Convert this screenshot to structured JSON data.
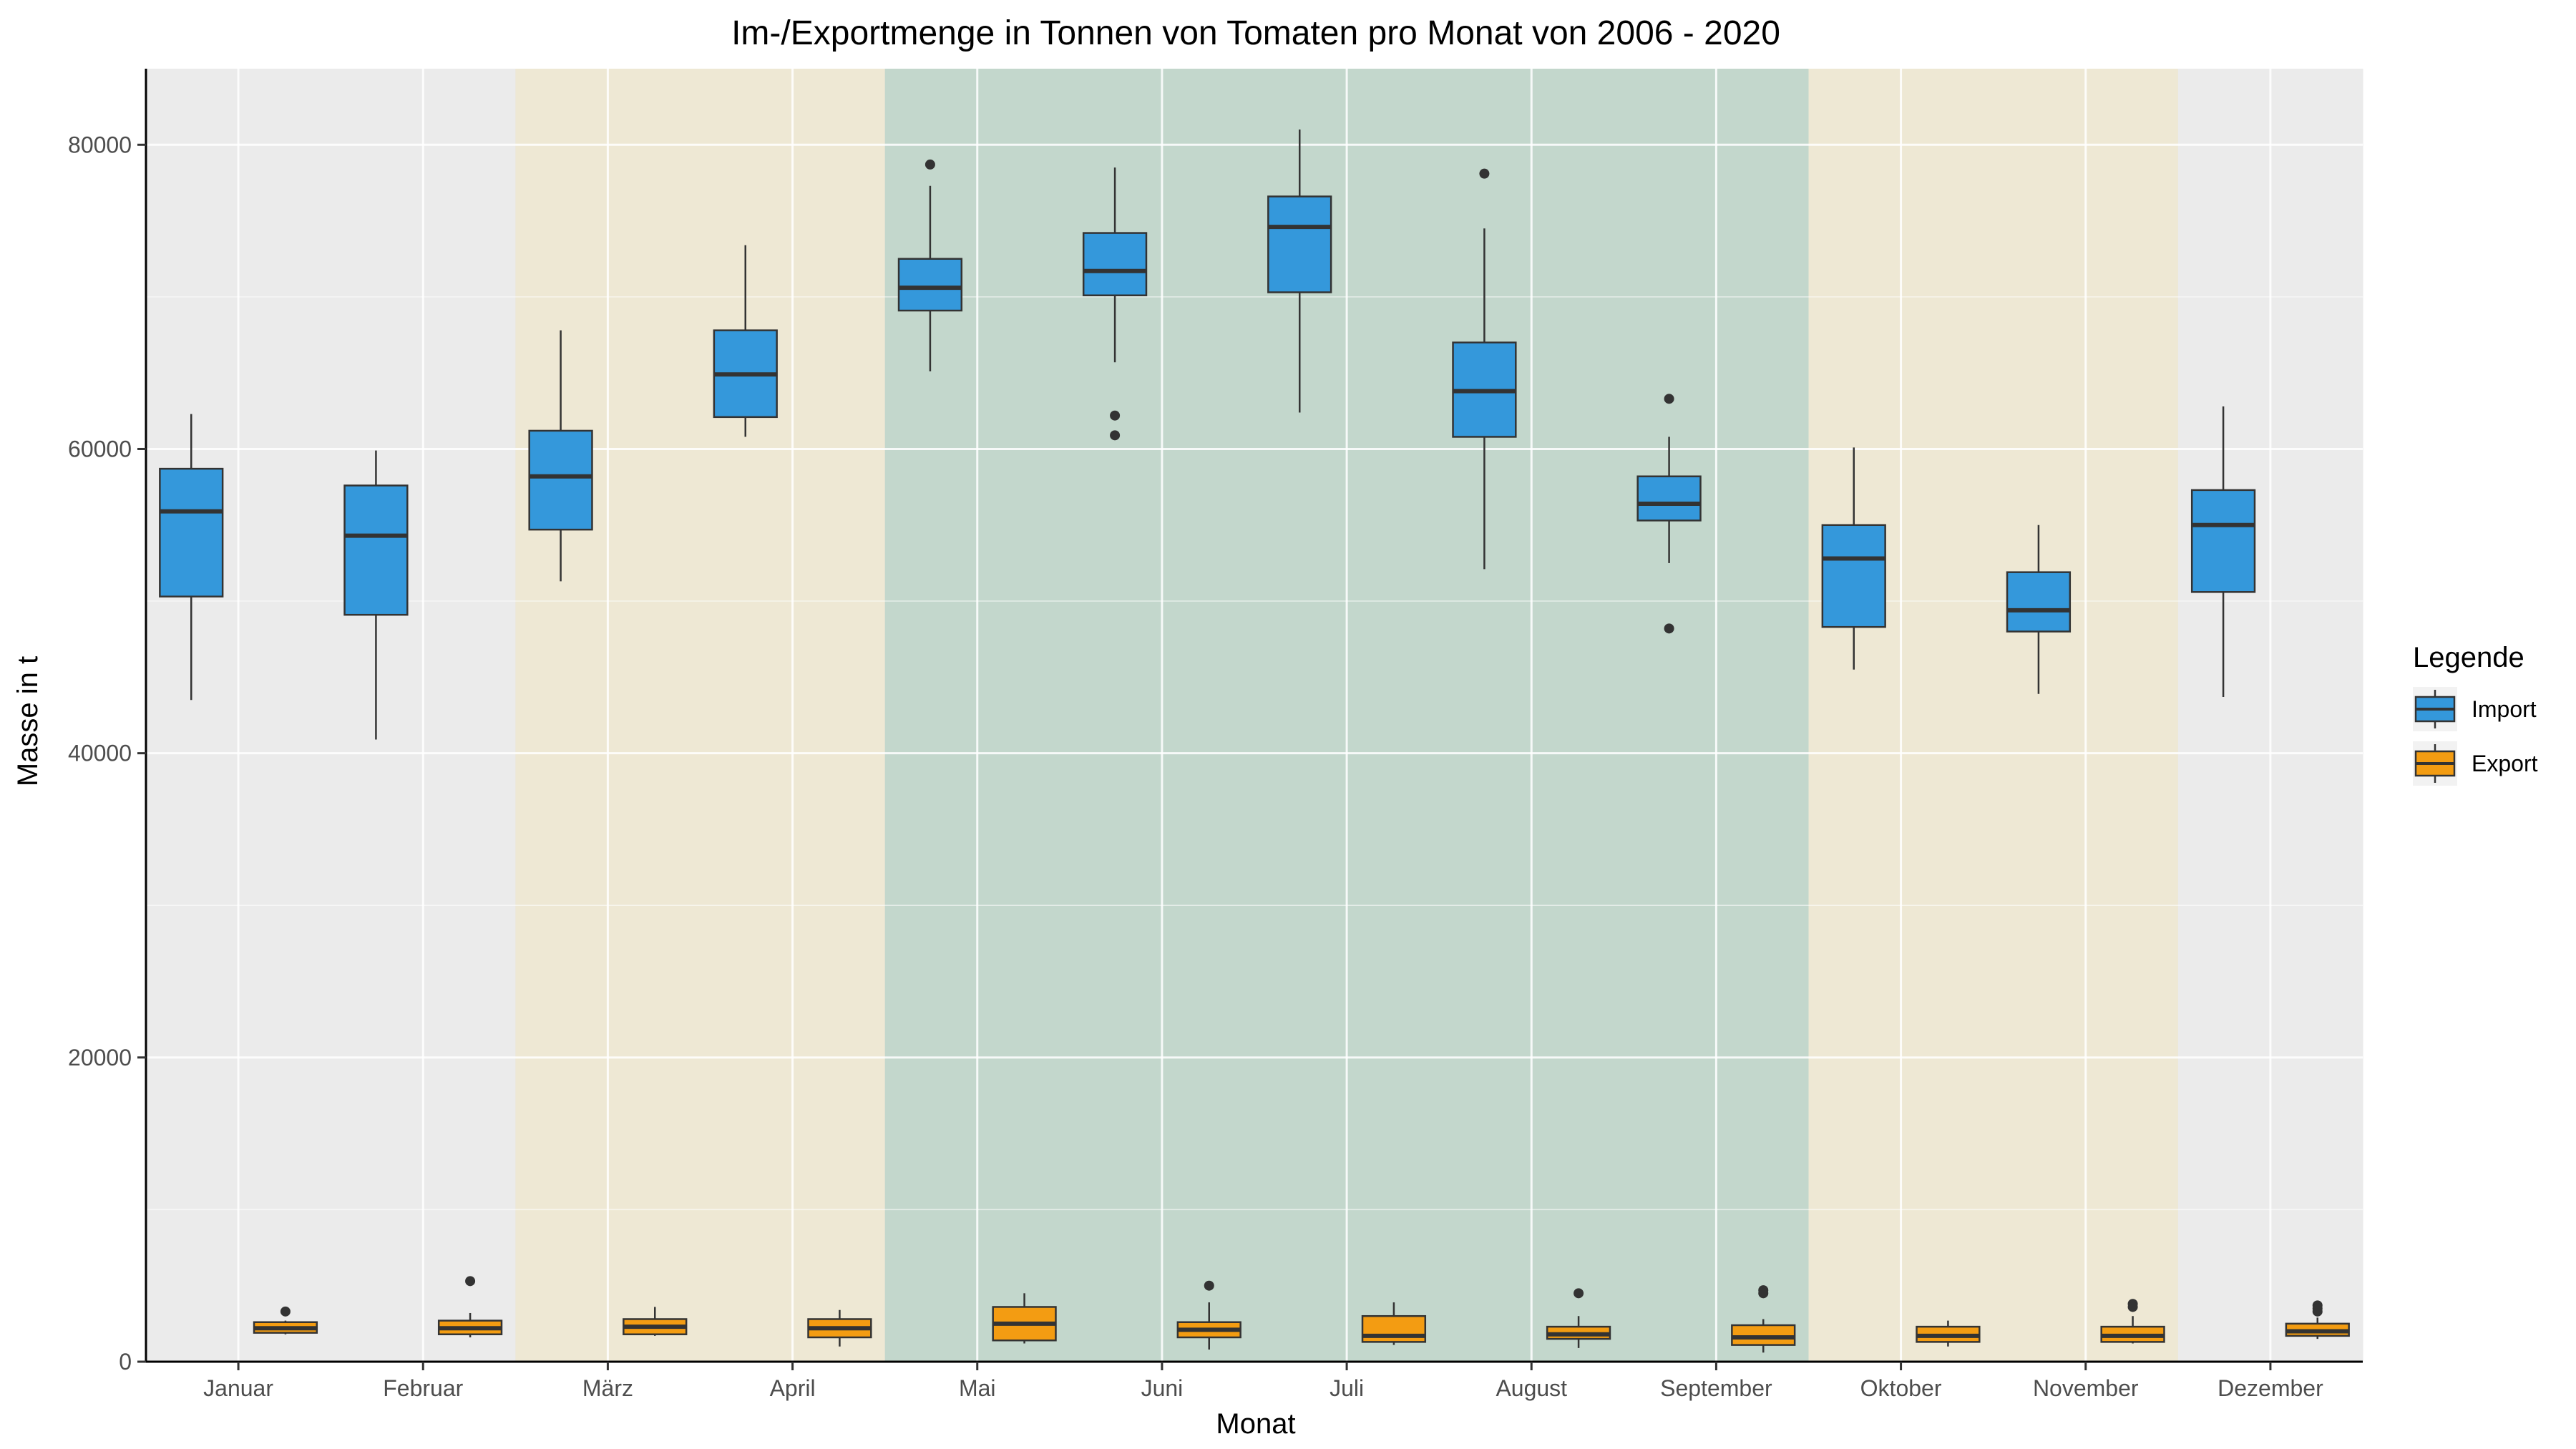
{
  "chart_data": {
    "type": "boxplot",
    "title": "Im-/Exportmenge in Tonnen von Tomaten pro Monat von 2006 - 2020",
    "xlabel": "Monat",
    "ylabel": "Masse in t",
    "ylim": [
      0,
      85000
    ],
    "yticks": [
      0,
      20000,
      40000,
      60000,
      80000
    ],
    "yticks_labels": [
      "0",
      "20000",
      "40000",
      "60000",
      "80000"
    ],
    "grid": true,
    "legend_position": "right",
    "legend_title": "Legende",
    "categories": [
      "Januar",
      "Februar",
      "März",
      "April",
      "Mai",
      "Juni",
      "Juli",
      "August",
      "September",
      "Oktober",
      "November",
      "Dezember"
    ],
    "season_colors": [
      "#ebebeb",
      "#ebebeb",
      "#eee8d4",
      "#eee8d4",
      "#c3d7cc",
      "#c3d7cc",
      "#c3d7cc",
      "#c3d7cc",
      "#c3d7cc",
      "#eee8d4",
      "#eee8d4",
      "#ebebeb"
    ],
    "series": [
      {
        "name": "Import",
        "color": "#3498db",
        "boxes": [
          {
            "whisker_low": 43500,
            "q1": 50300,
            "median": 55900,
            "q3": 58700,
            "whisker_high": 62300,
            "outliers": []
          },
          {
            "whisker_low": 40900,
            "q1": 49100,
            "median": 54300,
            "q3": 57600,
            "whisker_high": 59900,
            "outliers": []
          },
          {
            "whisker_low": 51300,
            "q1": 54700,
            "median": 58200,
            "q3": 61200,
            "whisker_high": 67800,
            "outliers": []
          },
          {
            "whisker_low": 60800,
            "q1": 62100,
            "median": 64900,
            "q3": 67800,
            "whisker_high": 73400,
            "outliers": []
          },
          {
            "whisker_low": 65100,
            "q1": 69100,
            "median": 70600,
            "q3": 72500,
            "whisker_high": 77300,
            "outliers": [
              78700
            ]
          },
          {
            "whisker_low": 65700,
            "q1": 70100,
            "median": 71700,
            "q3": 74200,
            "whisker_high": 78500,
            "outliers": [
              62200,
              60900
            ]
          },
          {
            "whisker_low": 62400,
            "q1": 70300,
            "median": 74600,
            "q3": 76600,
            "whisker_high": 81000,
            "outliers": []
          },
          {
            "whisker_low": 52100,
            "q1": 60800,
            "median": 63800,
            "q3": 67000,
            "whisker_high": 74500,
            "outliers": [
              78100
            ]
          },
          {
            "whisker_low": 52500,
            "q1": 55300,
            "median": 56400,
            "q3": 58200,
            "whisker_high": 60800,
            "outliers": [
              63300,
              48200
            ]
          },
          {
            "whisker_low": 45500,
            "q1": 48300,
            "median": 52800,
            "q3": 55000,
            "whisker_high": 60100,
            "outliers": []
          },
          {
            "whisker_low": 43900,
            "q1": 48000,
            "median": 49400,
            "q3": 51900,
            "whisker_high": 55000,
            "outliers": []
          },
          {
            "whisker_low": 43700,
            "q1": 50600,
            "median": 55000,
            "q3": 57300,
            "whisker_high": 62800,
            "outliers": []
          }
        ]
      },
      {
        "name": "Export",
        "color": "#f39c12",
        "boxes": [
          {
            "whisker_low": 1800,
            "q1": 1900,
            "median": 2200,
            "q3": 2600,
            "whisker_high": 2700,
            "outliers": [
              3300
            ]
          },
          {
            "whisker_low": 1600,
            "q1": 1800,
            "median": 2200,
            "q3": 2700,
            "whisker_high": 3200,
            "outliers": [
              5300
            ]
          },
          {
            "whisker_low": 1700,
            "q1": 1800,
            "median": 2300,
            "q3": 2800,
            "whisker_high": 3600,
            "outliers": []
          },
          {
            "whisker_low": 1000,
            "q1": 1600,
            "median": 2200,
            "q3": 2800,
            "whisker_high": 3400,
            "outliers": []
          },
          {
            "whisker_low": 1200,
            "q1": 1400,
            "median": 2500,
            "q3": 3600,
            "whisker_high": 4500,
            "outliers": []
          },
          {
            "whisker_low": 800,
            "q1": 1600,
            "median": 2100,
            "q3": 2600,
            "whisker_high": 3900,
            "outliers": [
              5000
            ]
          },
          {
            "whisker_low": 1100,
            "q1": 1300,
            "median": 1700,
            "q3": 3000,
            "whisker_high": 3900,
            "outliers": []
          },
          {
            "whisker_low": 900,
            "q1": 1500,
            "median": 1800,
            "q3": 2300,
            "whisker_high": 3000,
            "outliers": [
              4500
            ]
          },
          {
            "whisker_low": 600,
            "q1": 1100,
            "median": 1600,
            "q3": 2400,
            "whisker_high": 2800,
            "outliers": [
              4700,
              4500
            ]
          },
          {
            "whisker_low": 1000,
            "q1": 1300,
            "median": 1700,
            "q3": 2300,
            "whisker_high": 2700,
            "outliers": []
          },
          {
            "whisker_low": 1200,
            "q1": 1300,
            "median": 1700,
            "q3": 2300,
            "whisker_high": 3000,
            "outliers": [
              3800,
              3600
            ]
          },
          {
            "whisker_low": 1500,
            "q1": 1700,
            "median": 2000,
            "q3": 2500,
            "whisker_high": 2900,
            "outliers": [
              3700,
              3500,
              3300
            ]
          }
        ]
      }
    ]
  }
}
